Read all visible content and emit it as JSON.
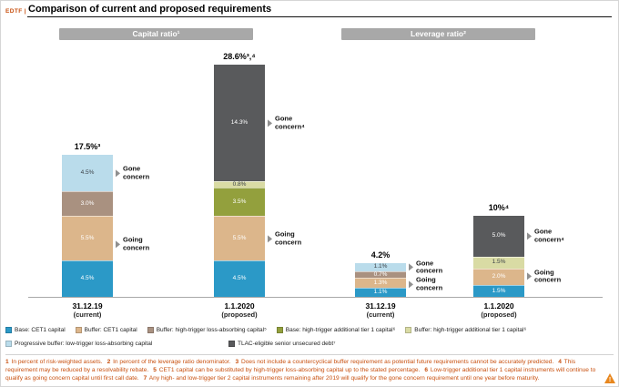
{
  "header": {
    "tag": "EDTF |",
    "title": "Comparison of current and proposed requirements"
  },
  "section_headers": [
    {
      "label": "Capital ratio¹"
    },
    {
      "label": "Leverage ratio²"
    }
  ],
  "chart_data": {
    "type": "bar",
    "stacked": true,
    "title": "Comparison of current and proposed requirements",
    "unit": "percent",
    "value_axis_visible": false,
    "groups": [
      {
        "section": "Capital ratio",
        "xlabel": "31.12.19",
        "xlabel2": "(current)",
        "total": 17.5,
        "total_label": "17.5%³",
        "segments_bottom_to_top": [
          {
            "name": "Base: CET1 capital",
            "value": 4.5,
            "label": "4.5%",
            "color": "#2b99c7",
            "text_color": "#ffffff"
          },
          {
            "name": "Buffer: CET1 capital",
            "value": 5.5,
            "label": "5.5%",
            "color": "#dcb68b",
            "text_color": "#ffffff"
          },
          {
            "name": "Buffer: high-trigger loss-absorbing capital",
            "value": 3.0,
            "label": "3.0%",
            "color": "#a99180",
            "text_color": "#ffffff"
          },
          {
            "name": "Progressive buffer: low-trigger loss-absorbing capital",
            "value": 4.5,
            "label": "4.5%",
            "color": "#badceb",
            "text_color": "#3c4248"
          }
        ],
        "annotations": [
          {
            "text": "Gone concern",
            "from": 13.0,
            "to": 17.5
          },
          {
            "text": "Going concern",
            "from": 0,
            "to": 13.0
          }
        ]
      },
      {
        "section": "Capital ratio",
        "xlabel": "1.1.2020",
        "xlabel2": "(proposed)",
        "total": 28.6,
        "total_label": "28.6%³,⁴",
        "segments_bottom_to_top": [
          {
            "name": "Base: CET1 capital",
            "value": 4.5,
            "label": "4.5%",
            "color": "#2b99c7",
            "text_color": "#ffffff"
          },
          {
            "name": "Buffer: CET1 capital",
            "value": 5.5,
            "label": "5.5%",
            "color": "#dcb68b",
            "text_color": "#ffffff"
          },
          {
            "name": "Base: high-trigger additional tier 1 capital",
            "value": 3.5,
            "label": "3.5%",
            "color": "#93a03d",
            "text_color": "#ffffff"
          },
          {
            "name": "Buffer: high-trigger additional tier 1 capital",
            "value": 0.8,
            "label": "0.8%",
            "color": "#d9dba4",
            "text_color": "#3c4248"
          },
          {
            "name": "TLAC-eligible senior unsecured debt",
            "value": 14.3,
            "label": "14.3%",
            "color": "#595a5c",
            "text_color": "#ffffff"
          }
        ],
        "annotations": [
          {
            "text": "Gone concern⁴",
            "from": 14.3,
            "to": 28.6
          },
          {
            "text": "Going concern",
            "from": 0,
            "to": 14.3
          }
        ]
      },
      {
        "section": "Leverage ratio",
        "xlabel": "31.12.19",
        "xlabel2": "(current)",
        "total": 4.2,
        "total_label": "4.2%",
        "segments_bottom_to_top": [
          {
            "name": "Base: CET1 capital",
            "value": 1.1,
            "label": "1.1%",
            "color": "#2b99c7",
            "text_color": "#ffffff"
          },
          {
            "name": "Buffer: CET1 capital",
            "value": 1.3,
            "label": "1.3%",
            "color": "#dcb68b",
            "text_color": "#ffffff"
          },
          {
            "name": "Buffer: high-trigger loss-absorbing capital",
            "value": 0.7,
            "label": "0.7%",
            "color": "#a99180",
            "text_color": "#ffffff"
          },
          {
            "name": "Progressive buffer: low-trigger loss-absorbing capital",
            "value": 1.1,
            "label": "1.1%",
            "color": "#badceb",
            "text_color": "#3c4248"
          }
        ],
        "annotations": [
          {
            "text": "Gone concern",
            "from": 3.1,
            "to": 4.2
          },
          {
            "text": "Going concern",
            "from": 0,
            "to": 3.1
          }
        ]
      },
      {
        "section": "Leverage ratio",
        "xlabel": "1.1.2020",
        "xlabel2": "(proposed)",
        "total": 10.0,
        "total_label": "10%⁴",
        "segments_bottom_to_top": [
          {
            "name": "Base: CET1 capital",
            "value": 1.5,
            "label": "1.5%",
            "color": "#2b99c7",
            "text_color": "#ffffff"
          },
          {
            "name": "Buffer: CET1 capital",
            "value": 2.0,
            "label": "2.0%",
            "color": "#dcb68b",
            "text_color": "#ffffff"
          },
          {
            "name": "Buffer: high-trigger additional tier 1 capital",
            "value": 1.5,
            "label": "1.5%",
            "color": "#d9dba4",
            "text_color": "#3c4248"
          },
          {
            "name": "TLAC-eligible senior unsecured debt",
            "value": 5.0,
            "label": "5.0%",
            "color": "#595a5c",
            "text_color": "#ffffff"
          }
        ],
        "annotations": [
          {
            "text": "Gone concern⁴",
            "from": 5.0,
            "to": 10.0
          },
          {
            "text": "Going concern",
            "from": 0,
            "to": 5.0
          }
        ]
      }
    ]
  },
  "legend": {
    "rows": [
      [
        {
          "label": "Base: CET1 capital",
          "color": "#2b99c7"
        },
        {
          "label": "Buffer: CET1 capital",
          "color": "#dcb68b"
        },
        {
          "label": "Buffer: high-trigger loss-absorbing capital⁵",
          "color": "#a99180"
        },
        {
          "label": "Base: high-trigger additional tier 1 capital⁶",
          "color": "#93a03d"
        },
        {
          "label": "Buffer: high-trigger additional tier 1 capital⁶",
          "color": "#d9dba4"
        }
      ],
      [
        {
          "label": "Progressive buffer: low-trigger loss-absorbing capital",
          "color": "#badceb"
        },
        {
          "label": "TLAC-eligible senior unsecured debt⁷",
          "color": "#595a5c"
        }
      ]
    ]
  },
  "footnotes": {
    "items": [
      {
        "num": "1",
        "text": "In percent of risk-weighted assets."
      },
      {
        "num": "2",
        "text": "In percent of the leverage ratio denominator."
      },
      {
        "num": "3",
        "text": "Does not include a countercyclical buffer requirement as potential future requirements cannot be accurately predicted."
      },
      {
        "num": "4",
        "text": "This requirement may be reduced by a resolvability rebate."
      },
      {
        "num": "5",
        "text": "CET1 capital can be substituted by high-trigger loss-absorbing capital up to the stated percentage."
      },
      {
        "num": "6",
        "text": "Low-trigger additional tier 1 capital instruments will continue to qualify as going concern capital until first call date."
      },
      {
        "num": "7",
        "text": "Any high- and low-trigger tier 2 capital instruments remaining after 2019 will qualify for the gone concern requirement until one year before maturity."
      }
    ]
  },
  "icons": {
    "warning_mark": "!"
  }
}
